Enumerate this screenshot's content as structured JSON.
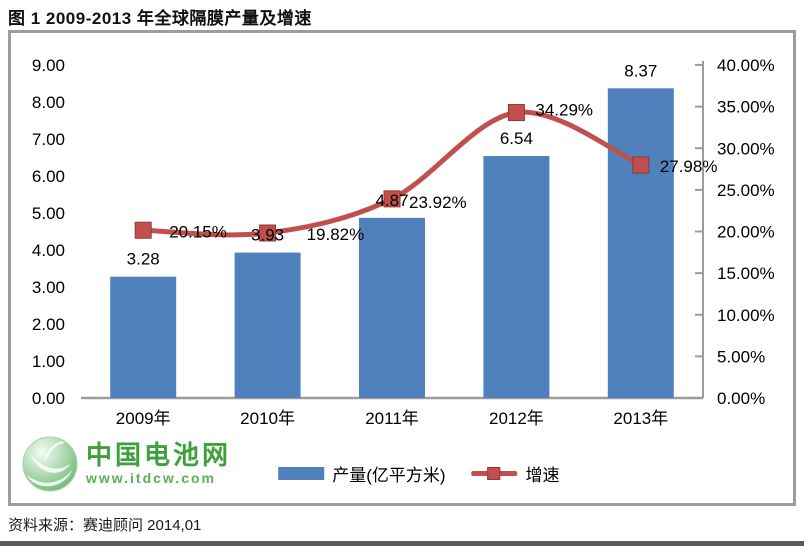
{
  "title": "图  1 2009-2013 年全球隔膜产量及增速",
  "source": "资料来源：赛迪顾问  2014,01",
  "logo": {
    "name": "中国电池网",
    "url": "www.itdcw.com"
  },
  "colors": {
    "bar": "#4f81bd",
    "line": "#c0504d",
    "marker_stroke": "#963634",
    "axis": "#9c9c9c",
    "frame": "#9d9d9d",
    "text": "#000000",
    "logo_green": "#3da03d"
  },
  "chart_data": {
    "type": "combo-bar-line",
    "categories": [
      "2009年",
      "2010年",
      "2011年",
      "2012年",
      "2013年"
    ],
    "series": [
      {
        "name": "产量(亿平方米)",
        "type": "bar",
        "axis": "left",
        "color": "#4f81bd",
        "values": [
          3.28,
          3.93,
          4.87,
          6.54,
          8.37
        ],
        "labels": [
          "3.28",
          "3.93",
          "4.87",
          "6.54",
          "8.37"
        ]
      },
      {
        "name": "增速",
        "type": "line",
        "axis": "right",
        "color": "#c0504d",
        "values": [
          20.15,
          19.82,
          23.92,
          34.29,
          27.98
        ],
        "labels": [
          "20.15%",
          "19.82%",
          "23.92%",
          "34.29%",
          "27.98%"
        ]
      }
    ],
    "left_axis": {
      "min": 0,
      "max": 9,
      "step": 1,
      "decimals": 2,
      "suffix": ""
    },
    "right_axis": {
      "min": 0,
      "max": 40,
      "step": 5,
      "decimals": 2,
      "suffix": "%"
    },
    "grid": false,
    "legend_position": "bottom"
  }
}
